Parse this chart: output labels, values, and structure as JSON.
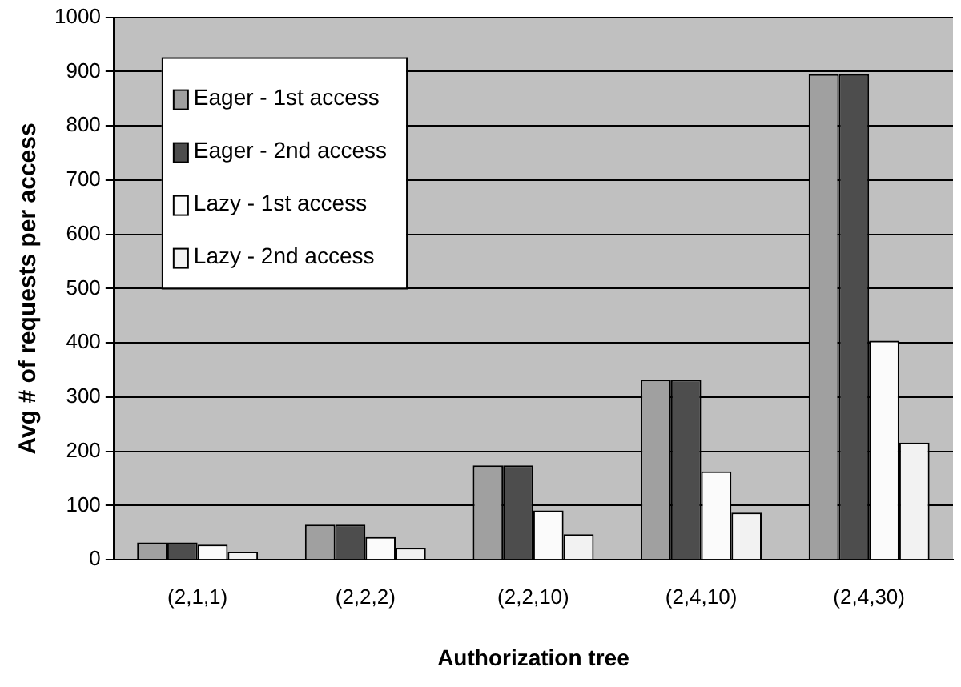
{
  "chart_data": {
    "type": "bar",
    "xlabel": "Authorization tree",
    "ylabel": "Avg # of requests per access",
    "categories": [
      "(2,1,1)",
      "(2,2,2)",
      "(2,2,10)",
      "(2,4,10)",
      "(2,4,30)"
    ],
    "series": [
      {
        "name": "Eager - 1st access",
        "color": "#a0a0a0",
        "values": [
          32,
          65,
          174,
          332,
          895
        ]
      },
      {
        "name": "Eager - 2nd access",
        "color": "#4d4d4d",
        "values": [
          32,
          65,
          174,
          332,
          895
        ]
      },
      {
        "name": "Lazy - 1st access",
        "color": "#fbfbfb",
        "values": [
          28,
          42,
          91,
          163,
          404
        ]
      },
      {
        "name": "Lazy - 2nd access",
        "color": "#f2f2f2",
        "values": [
          15,
          22,
          47,
          87,
          216
        ]
      }
    ],
    "ylim": [
      0,
      1000
    ],
    "yticks": [
      0,
      100,
      200,
      300,
      400,
      500,
      600,
      700,
      800,
      900,
      1000
    ],
    "grid": "y",
    "legend": "top left"
  }
}
